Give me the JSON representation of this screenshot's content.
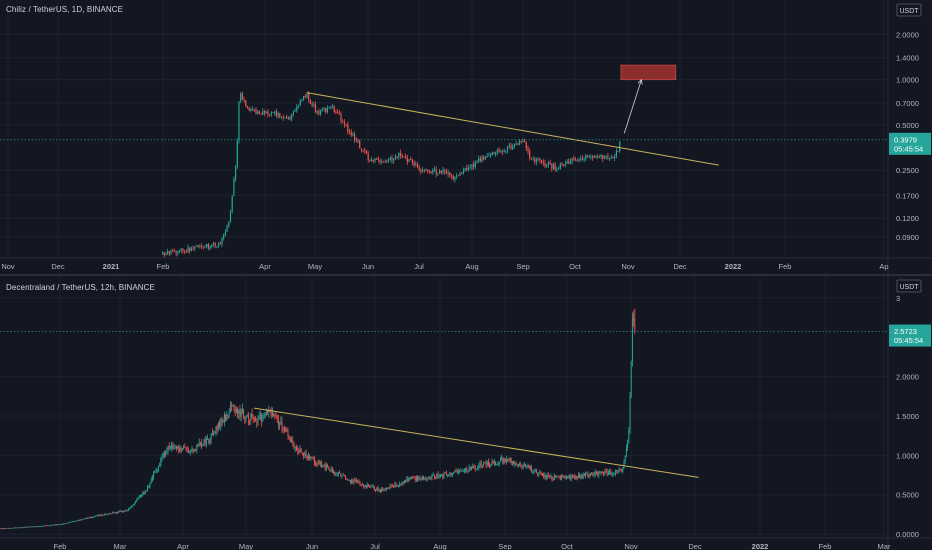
{
  "colors": {
    "background": "#131722",
    "grid": "#1e222d",
    "up": "#26a69a",
    "down": "#ef5350",
    "trendline": "#c9b458",
    "axis_text": "#b2b5be",
    "price_badge": "#26a69a",
    "target_box": "#8b2e2e"
  },
  "chart_data": [
    {
      "type": "candlestick",
      "title": "Chiliz / TetherUS, 1D, BINANCE",
      "currency_label": "USDT",
      "scale": "log",
      "grid": true,
      "xlabel": "",
      "ylabel": "",
      "x_ticks": [
        "Nov",
        "Dec",
        "2021",
        "Feb",
        "Apr",
        "May",
        "Jun",
        "Jul",
        "Aug",
        "Sep",
        "Oct",
        "Nov",
        "Dec",
        "2022",
        "Feb",
        "Ap"
      ],
      "y_ticks": [
        "2.0000",
        "1.4000",
        "1.0000",
        "0.7000",
        "0.5000",
        "0.2500",
        "0.1700",
        "0.1200",
        "0.0900"
      ],
      "y_tick_values": [
        2.0,
        1.4,
        1.0,
        0.7,
        0.5,
        0.25,
        0.17,
        0.12,
        0.09
      ],
      "ylim": [
        0.065,
        3.0
      ],
      "last_price": "0.3979",
      "last_price_value": 0.3979,
      "countdown": "05:45:54",
      "price_path": [
        [
          "Feb",
          0.07
        ],
        [
          "Mar 5",
          0.08
        ],
        [
          "Mar 10",
          0.12
        ],
        [
          "Mar 14",
          0.3
        ],
        [
          "Mar 16",
          0.9
        ],
        [
          "Mar 18",
          0.7
        ],
        [
          "Mar 25",
          0.6
        ],
        [
          "Apr",
          0.62
        ],
        [
          "Apr 15",
          0.55
        ],
        [
          "Apr 25",
          0.8
        ],
        [
          "May",
          0.6
        ],
        [
          "May 10",
          0.65
        ],
        [
          "May 20",
          0.45
        ],
        [
          "Jun",
          0.3
        ],
        [
          "Jun 10",
          0.28
        ],
        [
          "Jun 20",
          0.32
        ],
        [
          "Jul",
          0.25
        ],
        [
          "Jul 15",
          0.24
        ],
        [
          "Jul 22",
          0.22
        ],
        [
          "Aug",
          0.27
        ],
        [
          "Aug 15",
          0.33
        ],
        [
          "Aug 25",
          0.36
        ],
        [
          "Sep",
          0.4
        ],
        [
          "Sep 5",
          0.3
        ],
        [
          "Sep 20",
          0.26
        ],
        [
          "Oct",
          0.3
        ],
        [
          "Oct 15",
          0.31
        ],
        [
          "Oct 25",
          0.31
        ],
        [
          "Oct 28",
          0.4
        ]
      ],
      "trendline": [
        [
          "Apr 25",
          0.82
        ],
        [
          "Dec 25",
          0.27
        ]
      ],
      "target_zone": [
        1.0,
        1.25
      ],
      "arrow": [
        [
          "Oct 30",
          0.44
        ],
        [
          "Nov 10",
          1.0
        ]
      ]
    },
    {
      "type": "candlestick",
      "title": "Decentraland / TetherUS, 12h, BINANCE",
      "currency_label": "USDT",
      "scale": "linear",
      "grid": true,
      "xlabel": "",
      "ylabel": "",
      "x_ticks": [
        "Feb",
        "Mar",
        "Apr",
        "May",
        "Jun",
        "Jul",
        "Aug",
        "Sep",
        "Oct",
        "Nov",
        "Dec",
        "2022",
        "Feb",
        "Mar"
      ],
      "y_ticks": [
        "3",
        "2.0000",
        "1.5000",
        "1.0000",
        "0.5000",
        "0.0000"
      ],
      "y_tick_values": [
        3.0,
        2.0,
        1.5,
        1.0,
        0.5,
        0.0
      ],
      "ylim": [
        -0.05,
        3.1
      ],
      "last_price": "2.5723",
      "last_price_value": 2.5723,
      "countdown": "05:45:54",
      "price_path": [
        [
          "Jan",
          0.07
        ],
        [
          "Jan 20",
          0.1
        ],
        [
          "Feb",
          0.13
        ],
        [
          "Feb 20",
          0.25
        ],
        [
          "Mar",
          0.3
        ],
        [
          "Mar 10",
          0.55
        ],
        [
          "Mar 20",
          1.1
        ],
        [
          "Apr",
          1.05
        ],
        [
          "Apr 10",
          1.2
        ],
        [
          "Apr 20",
          1.6
        ],
        [
          "May",
          1.45
        ],
        [
          "May 10",
          1.55
        ],
        [
          "May 20",
          1.1
        ],
        [
          "Jun",
          0.9
        ],
        [
          "Jun 15",
          0.7
        ],
        [
          "Jul",
          0.55
        ],
        [
          "Jul 15",
          0.7
        ],
        [
          "Aug",
          0.75
        ],
        [
          "Aug 20",
          0.88
        ],
        [
          "Sep",
          0.95
        ],
        [
          "Sep 10",
          0.85
        ],
        [
          "Sep 20",
          0.72
        ],
        [
          "Oct",
          0.72
        ],
        [
          "Oct 15",
          0.78
        ],
        [
          "Oct 25",
          0.8
        ],
        [
          "Oct 28",
          1.3
        ],
        [
          "Oct 30",
          2.9
        ],
        [
          "Oct 31",
          2.57
        ]
      ],
      "trendline": [
        [
          "May",
          1.6
        ],
        [
          "Dec",
          0.72
        ]
      ]
    }
  ]
}
